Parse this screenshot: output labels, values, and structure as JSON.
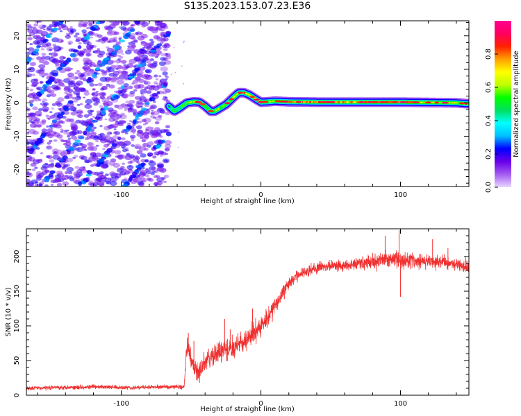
{
  "page": {
    "title": "S135.2023.153.07.23.E36"
  },
  "chart_data": [
    {
      "type": "heatmap",
      "xlabel": "Height of straight line (km)",
      "ylabel": "Frequency (Hz)",
      "xlim": [
        -168,
        149
      ],
      "ylim": [
        -25,
        24.5
      ],
      "xticks": [
        -100,
        0,
        100
      ],
      "yticks": [
        -20,
        -10,
        0,
        10,
        20
      ],
      "grid": false,
      "colorbar": {
        "label": "Normalized spectral amplitude",
        "range": [
          0,
          1
        ],
        "ticks": [
          0.0,
          0.2,
          0.4,
          0.6,
          0.8
        ],
        "stops": [
          "#e8d8ff",
          "#a45cf0",
          "#6a00e8",
          "#0000ff",
          "#00bfff",
          "#00ffff",
          "#00e060",
          "#00ff00",
          "#c0ff00",
          "#ffff00",
          "#ffa000",
          "#ff2000",
          "#ff0060",
          "#ff0090"
        ]
      },
      "noise_region": {
        "x_start": -168,
        "x_end": -66,
        "stripe_slope_hz_per_km": 0.5
      },
      "track": {
        "x": [
          -66,
          -62,
          -58,
          -53,
          -48,
          -44,
          -40,
          -36,
          -33,
          -29,
          -25,
          -20,
          -16,
          -12,
          -8,
          -4,
          0,
          5,
          10,
          20,
          40,
          60,
          80,
          100,
          120,
          140,
          149
        ],
        "y": [
          -1,
          -2.5,
          -1.5,
          0,
          0.3,
          0.2,
          -1,
          -2.5,
          -2.5,
          -1.5,
          -0.5,
          1.5,
          3,
          3,
          2.3,
          1.2,
          0.2,
          0.3,
          0.5,
          0.3,
          0.2,
          0.2,
          0.2,
          0.2,
          0.1,
          0,
          -0.3
        ],
        "amplitude": [
          0.2,
          0.45,
          0.4,
          0.55,
          0.6,
          0.55,
          0.45,
          0.5,
          0.6,
          0.55,
          0.5,
          0.6,
          0.75,
          0.8,
          0.7,
          0.6,
          0.55,
          0.5,
          0.6,
          0.75,
          0.8,
          0.75,
          0.8,
          0.85,
          0.7,
          0.65,
          0.6
        ]
      }
    },
    {
      "type": "line",
      "xlabel": "Height of straight line (km)",
      "ylabel": "SNR (10 * v/v)",
      "xlim": [
        -168,
        149
      ],
      "ylim": [
        0,
        240
      ],
      "xticks": [
        -100,
        0,
        100
      ],
      "yticks": [
        0,
        50,
        100,
        150,
        200
      ],
      "grid": false,
      "color": "#f03030",
      "series": [
        {
          "x": [
            -168,
            -150,
            -120,
            -90,
            -70,
            -55,
            -53,
            -50,
            -45,
            -40,
            -30,
            -20,
            -10,
            0,
            10,
            20,
            30,
            40,
            50,
            60,
            70,
            80,
            90,
            100,
            110,
            120,
            130,
            140,
            149
          ],
          "values": [
            10,
            11,
            12,
            11,
            12,
            12,
            75,
            50,
            30,
            48,
            62,
            68,
            80,
            98,
            128,
            162,
            178,
            184,
            186,
            188,
            190,
            192,
            196,
            195,
            194,
            193,
            192,
            190,
            186
          ],
          "noise": [
            3,
            3,
            3,
            3,
            3,
            3,
            12,
            14,
            14,
            14,
            14,
            14,
            14,
            14,
            12,
            9,
            8,
            8,
            8,
            8,
            9,
            10,
            12,
            12,
            10,
            9,
            9,
            9,
            9
          ]
        }
      ],
      "spikes": [
        {
          "x": -52,
          "y": 90
        },
        {
          "x": -48,
          "y": 78
        },
        {
          "x": -44,
          "y": 18
        },
        {
          "x": -26,
          "y": 110
        },
        {
          "x": -22,
          "y": 95
        },
        {
          "x": -6,
          "y": 125
        },
        {
          "x": 89,
          "y": 230
        },
        {
          "x": 99,
          "y": 238
        },
        {
          "x": 100,
          "y": 142
        },
        {
          "x": 123,
          "y": 225
        },
        {
          "x": 134,
          "y": 212
        }
      ]
    }
  ]
}
